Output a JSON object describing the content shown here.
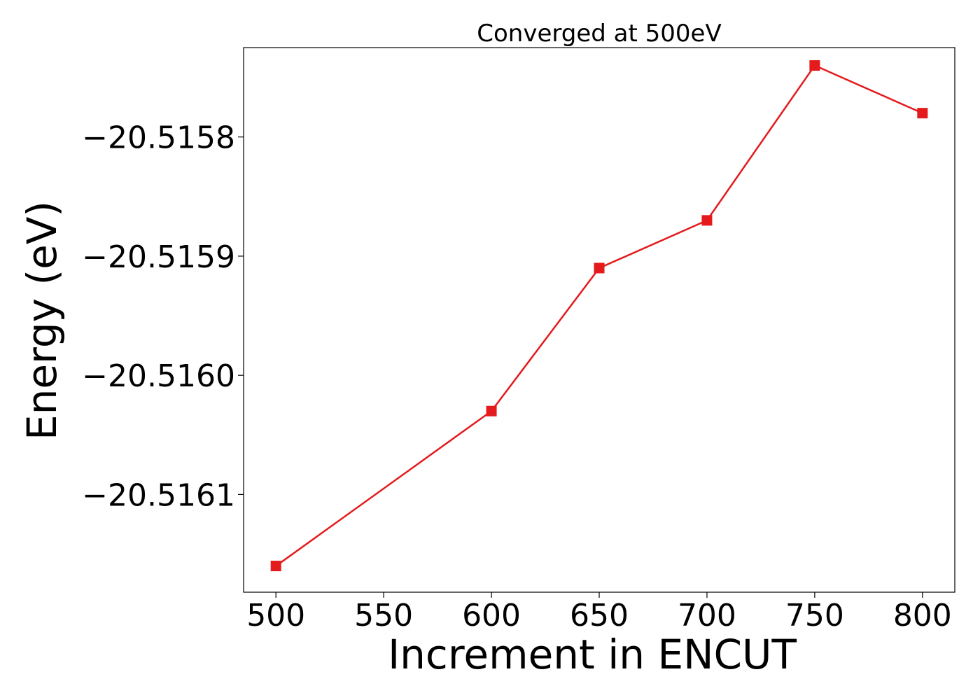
{
  "chart_data": {
    "type": "line",
    "title": "Converged at 500eV",
    "xlabel": "Increment in ENCUT",
    "ylabel": "Energy (eV)",
    "x": [
      500,
      600,
      650,
      700,
      750,
      800
    ],
    "series": [
      {
        "values": [
          -20.51616,
          -20.51603,
          -20.51591,
          -20.51587,
          -20.51574,
          -20.51578
        ],
        "color": "#e41a1c",
        "marker": "square"
      }
    ],
    "xlim": [
      485,
      815
    ],
    "ylim": [
      -20.516182,
      -20.515725
    ],
    "xticks": [
      500,
      550,
      600,
      650,
      700,
      750,
      800
    ],
    "xtick_labels": [
      "500",
      "550",
      "600",
      "650",
      "700",
      "750",
      "800"
    ],
    "yticks": [
      -20.5161,
      -20.516,
      -20.5159,
      -20.5158
    ],
    "ytick_labels": [
      "−20.5161",
      "−20.5160",
      "−20.5159",
      "−20.5158"
    ],
    "grid": false,
    "legend": false
  }
}
